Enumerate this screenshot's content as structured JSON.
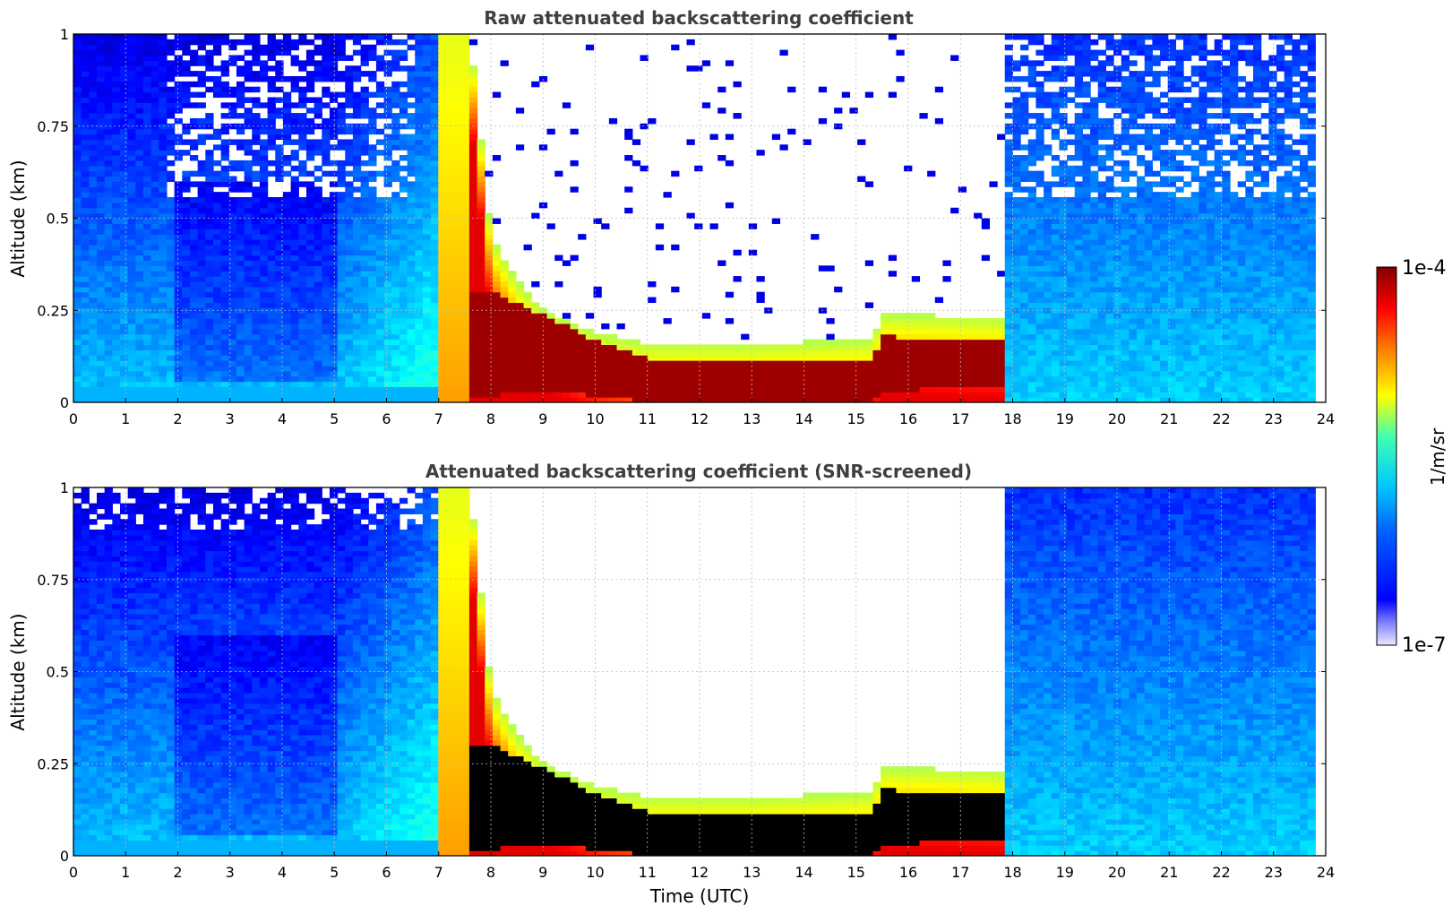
{
  "colors": {
    "jet_low": "#0000ff",
    "jet_mid": "#00c0ff",
    "jet_high": "#800000",
    "below_min": "#e8e8ff",
    "saturated_screened": "#000000",
    "title": "#3f3f3f"
  },
  "chart_data": [
    {
      "type": "heatmap",
      "title": "Raw attenuated backscattering coefficient",
      "xlabel": "",
      "ylabel": "Altitude (km)",
      "xlim": [
        0,
        24
      ],
      "ylim": [
        0,
        1
      ],
      "xticks": [
        "0",
        "1",
        "2",
        "3",
        "4",
        "5",
        "6",
        "7",
        "8",
        "9",
        "10",
        "11",
        "12",
        "13",
        "14",
        "15",
        "16",
        "17",
        "18",
        "19",
        "20",
        "21",
        "22",
        "23",
        "24"
      ],
      "yticks": [
        "0",
        "0.25",
        "0.5",
        "0.75",
        "1"
      ],
      "grid": true,
      "data_end_time": 23.8,
      "features": {
        "fog_onset": 7.0,
        "fog_top_km": [
          [
            7.0,
            1.0
          ],
          [
            7.6,
            1.0
          ],
          [
            8.0,
            0.45
          ],
          [
            8.5,
            0.33
          ],
          [
            9.0,
            0.25
          ],
          [
            10.0,
            0.19
          ],
          [
            11.0,
            0.16
          ],
          [
            13.0,
            0.16
          ],
          [
            15.3,
            0.17
          ],
          [
            15.5,
            0.24
          ],
          [
            17.8,
            0.23
          ]
        ],
        "dense_layer_km": [
          [
            8.0,
            0.02,
            0.3
          ],
          [
            9.0,
            0.03,
            0.24
          ],
          [
            10.0,
            0.02,
            0.17
          ],
          [
            11.0,
            0.0,
            0.12
          ],
          [
            15.3,
            0.0,
            0.12
          ],
          [
            15.5,
            0.03,
            0.18
          ],
          [
            17.8,
            0.05,
            0.17
          ]
        ],
        "fog_dissipation": 17.9,
        "noise_gap": [
          7.8,
          17.9
        ]
      }
    },
    {
      "type": "heatmap",
      "title": "Attenuated backscattering coefficient (SNR-screened)",
      "xlabel": "Time (UTC)",
      "ylabel": "Altitude (km)",
      "xlim": [
        0,
        24
      ],
      "ylim": [
        0,
        1
      ],
      "xticks": [
        "0",
        "1",
        "2",
        "3",
        "4",
        "5",
        "6",
        "7",
        "8",
        "9",
        "10",
        "11",
        "12",
        "13",
        "14",
        "15",
        "16",
        "17",
        "18",
        "19",
        "20",
        "21",
        "22",
        "23",
        "24"
      ],
      "yticks": [
        "0",
        "0.25",
        "0.5",
        "0.75",
        "1"
      ],
      "grid": true,
      "data_end_time": 23.8,
      "features": {
        "fog_onset": 7.0,
        "saturated_core": "black",
        "fog_dissipation": 17.9
      }
    }
  ],
  "colorbar": {
    "label": "1/m/sr",
    "max_label": "1e-4",
    "min_label": "1e-7",
    "scale": "log",
    "range": [
      1e-07,
      0.0001
    ],
    "colormap": "jet"
  }
}
